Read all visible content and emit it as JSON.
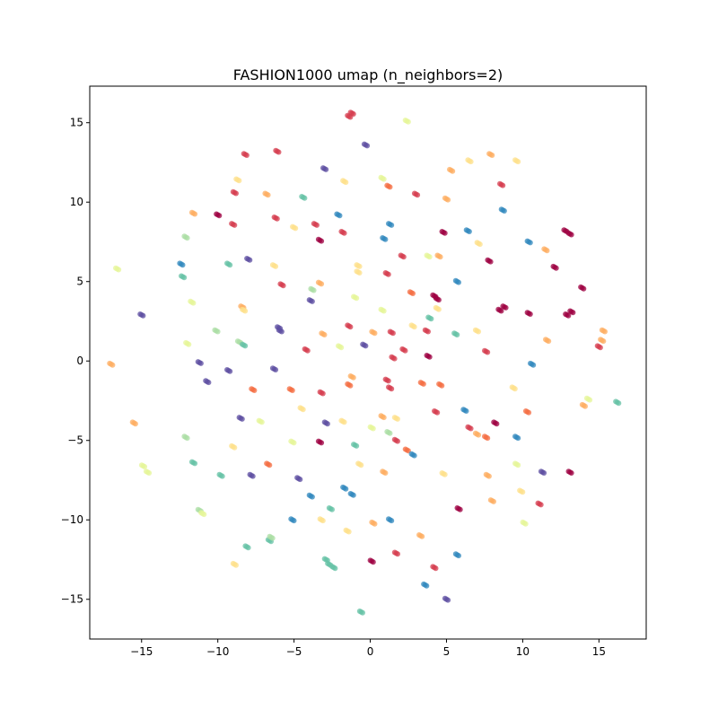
{
  "chart_data": {
    "type": "scatter",
    "title": "FASHION1000 umap (n_neighbors=2)",
    "xlabel": "",
    "ylabel": "",
    "xlim": [
      -18.4,
      18.1
    ],
    "ylim": [
      -17.5,
      17.3
    ],
    "x_ticks": [
      -15,
      -10,
      -5,
      0,
      5,
      10,
      15
    ],
    "y_ticks": [
      -15,
      -10,
      -5,
      0,
      5,
      10,
      15
    ],
    "x_tick_labels": [
      "−15",
      "−10",
      "−5",
      "0",
      "5",
      "10",
      "15"
    ],
    "y_tick_labels": [
      "−15",
      "−10",
      "−5",
      "0",
      "5",
      "10",
      "15"
    ],
    "grid": false,
    "legend": false,
    "palette": [
      "#9e0142",
      "#d53e4f",
      "#f46d43",
      "#fdae61",
      "#fee08b",
      "#e6f598",
      "#abdda4",
      "#66c2a5",
      "#3288bd",
      "#5e4fa2"
    ],
    "points": [
      [
        -1.4,
        15.4,
        1
      ],
      [
        -1.2,
        15.6,
        1
      ],
      [
        2.4,
        15.1,
        5
      ],
      [
        -8.2,
        13.0,
        1
      ],
      [
        -6.1,
        13.2,
        1
      ],
      [
        -0.3,
        13.6,
        9
      ],
      [
        -3.0,
        12.1,
        9
      ],
      [
        -8.7,
        11.4,
        4
      ],
      [
        -1.7,
        11.3,
        4
      ],
      [
        0.8,
        11.5,
        5
      ],
      [
        1.2,
        11.0,
        2
      ],
      [
        5.3,
        12.0,
        3
      ],
      [
        6.5,
        12.6,
        4
      ],
      [
        7.9,
        13.0,
        3
      ],
      [
        9.6,
        12.6,
        4
      ],
      [
        -8.9,
        10.6,
        1
      ],
      [
        -6.8,
        10.5,
        3
      ],
      [
        -4.4,
        10.3,
        7
      ],
      [
        3.0,
        10.5,
        1
      ],
      [
        5.0,
        10.2,
        3
      ],
      [
        8.6,
        11.1,
        1
      ],
      [
        -11.6,
        9.3,
        3
      ],
      [
        -10.0,
        9.2,
        0
      ],
      [
        -9.0,
        8.6,
        1
      ],
      [
        -6.2,
        9.0,
        1
      ],
      [
        -5.0,
        8.4,
        4
      ],
      [
        -3.6,
        8.6,
        1
      ],
      [
        -2.1,
        9.2,
        8
      ],
      [
        -1.8,
        8.1,
        1
      ],
      [
        1.3,
        8.6,
        8
      ],
      [
        4.8,
        8.1,
        0
      ],
      [
        6.4,
        8.2,
        8
      ],
      [
        8.7,
        9.5,
        8
      ],
      [
        12.8,
        8.2,
        0
      ],
      [
        13.1,
        8.0,
        0
      ],
      [
        -12.1,
        7.8,
        6
      ],
      [
        -3.3,
        7.6,
        0
      ],
      [
        0.9,
        7.7,
        8
      ],
      [
        7.1,
        7.4,
        4
      ],
      [
        10.4,
        7.5,
        8
      ],
      [
        11.5,
        7.0,
        3
      ],
      [
        -16.6,
        5.8,
        5
      ],
      [
        -12.4,
        6.1,
        8
      ],
      [
        -9.3,
        6.1,
        7
      ],
      [
        -8.0,
        6.4,
        9
      ],
      [
        -6.3,
        6.0,
        4
      ],
      [
        -12.3,
        5.3,
        7
      ],
      [
        -5.8,
        4.8,
        1
      ],
      [
        -3.8,
        4.5,
        6
      ],
      [
        -3.3,
        4.9,
        3
      ],
      [
        -0.8,
        6.0,
        4
      ],
      [
        -0.8,
        5.6,
        4
      ],
      [
        1.1,
        5.5,
        1
      ],
      [
        2.1,
        6.6,
        1
      ],
      [
        3.8,
        6.6,
        5
      ],
      [
        4.5,
        6.6,
        3
      ],
      [
        5.7,
        5.0,
        8
      ],
      [
        7.8,
        6.3,
        0
      ],
      [
        12.1,
        5.9,
        0
      ],
      [
        13.9,
        4.6,
        0
      ],
      [
        -3.9,
        3.8,
        9
      ],
      [
        -1.0,
        4.0,
        5
      ],
      [
        2.7,
        4.3,
        2
      ],
      [
        -11.7,
        3.7,
        5
      ],
      [
        -8.4,
        3.4,
        3
      ],
      [
        -8.3,
        3.2,
        4
      ],
      [
        4.2,
        4.1,
        0
      ],
      [
        4.4,
        3.9,
        0
      ],
      [
        -15.0,
        2.9,
        9
      ],
      [
        -10.1,
        1.9,
        6
      ],
      [
        -6.0,
        2.1,
        9
      ],
      [
        -5.9,
        1.9,
        9
      ],
      [
        -3.1,
        1.7,
        3
      ],
      [
        -1.4,
        2.2,
        1
      ],
      [
        0.8,
        3.2,
        5
      ],
      [
        1.4,
        1.8,
        1
      ],
      [
        2.8,
        2.2,
        4
      ],
      [
        3.9,
        2.7,
        7
      ],
      [
        3.7,
        1.9,
        1
      ],
      [
        4.4,
        3.3,
        4
      ],
      [
        5.6,
        1.7,
        7
      ],
      [
        7.0,
        1.9,
        4
      ],
      [
        8.5,
        3.2,
        0
      ],
      [
        8.8,
        3.4,
        0
      ],
      [
        10.4,
        3.0,
        0
      ],
      [
        12.9,
        2.9,
        0
      ],
      [
        13.2,
        3.1,
        0
      ],
      [
        15.3,
        1.9,
        3
      ],
      [
        15.2,
        1.3,
        3
      ],
      [
        -12.0,
        1.1,
        5
      ],
      [
        -8.6,
        1.2,
        6
      ],
      [
        -8.3,
        1.0,
        7
      ],
      [
        -4.2,
        0.7,
        1
      ],
      [
        -2.0,
        0.9,
        5
      ],
      [
        -0.4,
        1.0,
        9
      ],
      [
        0.2,
        1.8,
        3
      ],
      [
        1.5,
        0.2,
        1
      ],
      [
        2.2,
        0.7,
        1
      ],
      [
        3.8,
        0.3,
        0
      ],
      [
        7.6,
        0.6,
        1
      ],
      [
        11.6,
        1.3,
        3
      ],
      [
        15.0,
        0.9,
        1
      ],
      [
        -17.0,
        -0.2,
        3
      ],
      [
        -11.2,
        -0.1,
        9
      ],
      [
        -9.3,
        -0.6,
        9
      ],
      [
        -6.3,
        -0.5,
        9
      ],
      [
        -10.7,
        -1.3,
        9
      ],
      [
        -7.7,
        -1.8,
        2
      ],
      [
        -5.2,
        -1.8,
        2
      ],
      [
        -3.2,
        -2.0,
        1
      ],
      [
        -1.2,
        -1.0,
        3
      ],
      [
        -1.4,
        -1.5,
        2
      ],
      [
        1.1,
        -1.2,
        1
      ],
      [
        1.3,
        -1.7,
        1
      ],
      [
        3.4,
        -1.4,
        2
      ],
      [
        4.6,
        -1.5,
        2
      ],
      [
        9.4,
        -1.7,
        4
      ],
      [
        10.6,
        -0.2,
        8
      ],
      [
        -15.5,
        -3.9,
        3
      ],
      [
        -8.5,
        -3.6,
        9
      ],
      [
        -7.2,
        -3.8,
        5
      ],
      [
        -4.5,
        -3.0,
        4
      ],
      [
        -2.9,
        -3.9,
        9
      ],
      [
        -1.8,
        -3.8,
        4
      ],
      [
        0.1,
        -4.2,
        5
      ],
      [
        0.8,
        -3.5,
        3
      ],
      [
        1.7,
        -3.6,
        4
      ],
      [
        4.3,
        -3.2,
        1
      ],
      [
        6.2,
        -3.1,
        8
      ],
      [
        8.2,
        -3.9,
        0
      ],
      [
        10.3,
        -3.2,
        2
      ],
      [
        14.0,
        -2.8,
        3
      ],
      [
        14.3,
        -2.4,
        5
      ],
      [
        16.2,
        -2.6,
        7
      ],
      [
        -12.1,
        -4.8,
        6
      ],
      [
        -9.0,
        -5.4,
        4
      ],
      [
        -5.1,
        -5.1,
        5
      ],
      [
        -3.3,
        -5.1,
        0
      ],
      [
        -1.0,
        -5.3,
        7
      ],
      [
        1.2,
        -4.5,
        6
      ],
      [
        1.7,
        -5.0,
        1
      ],
      [
        2.4,
        -5.6,
        2
      ],
      [
        2.8,
        -5.9,
        8
      ],
      [
        6.5,
        -4.2,
        1
      ],
      [
        7.0,
        -4.6,
        3
      ],
      [
        7.6,
        -4.8,
        2
      ],
      [
        9.6,
        -4.8,
        8
      ],
      [
        -14.9,
        -6.6,
        5
      ],
      [
        -14.6,
        -7.0,
        5
      ],
      [
        -11.6,
        -6.4,
        7
      ],
      [
        -9.8,
        -7.2,
        7
      ],
      [
        -7.8,
        -7.2,
        9
      ],
      [
        -6.7,
        -6.5,
        2
      ],
      [
        -4.7,
        -7.4,
        9
      ],
      [
        -0.7,
        -6.5,
        4
      ],
      [
        0.9,
        -7.0,
        3
      ],
      [
        4.8,
        -7.1,
        4
      ],
      [
        7.7,
        -7.2,
        3
      ],
      [
        9.6,
        -6.5,
        5
      ],
      [
        11.3,
        -7.0,
        9
      ],
      [
        13.1,
        -7.0,
        0
      ],
      [
        -3.9,
        -8.5,
        8
      ],
      [
        -1.7,
        -8.0,
        8
      ],
      [
        -1.2,
        -8.4,
        8
      ],
      [
        -11.2,
        -9.4,
        6
      ],
      [
        -11.0,
        -9.6,
        5
      ],
      [
        -5.1,
        -10.0,
        8
      ],
      [
        -3.2,
        -10.0,
        4
      ],
      [
        -2.6,
        -9.3,
        7
      ],
      [
        0.2,
        -10.2,
        3
      ],
      [
        1.3,
        -10.0,
        8
      ],
      [
        5.8,
        -9.3,
        0
      ],
      [
        8.0,
        -8.8,
        3
      ],
      [
        9.9,
        -8.2,
        4
      ],
      [
        11.1,
        -9.0,
        1
      ],
      [
        -8.1,
        -11.7,
        7
      ],
      [
        -6.6,
        -11.3,
        7
      ],
      [
        -6.5,
        -11.1,
        6
      ],
      [
        -1.5,
        -10.7,
        4
      ],
      [
        3.3,
        -11.0,
        3
      ],
      [
        10.1,
        -10.2,
        5
      ],
      [
        -8.9,
        -12.8,
        4
      ],
      [
        -2.9,
        -12.5,
        7
      ],
      [
        -2.7,
        -12.8,
        7
      ],
      [
        -2.4,
        -13.0,
        7
      ],
      [
        0.1,
        -12.6,
        0
      ],
      [
        1.7,
        -12.1,
        1
      ],
      [
        4.2,
        -13.0,
        1
      ],
      [
        5.7,
        -12.2,
        8
      ],
      [
        3.6,
        -14.1,
        8
      ],
      [
        5.0,
        -15.0,
        9
      ],
      [
        -0.6,
        -15.8,
        7
      ]
    ]
  }
}
